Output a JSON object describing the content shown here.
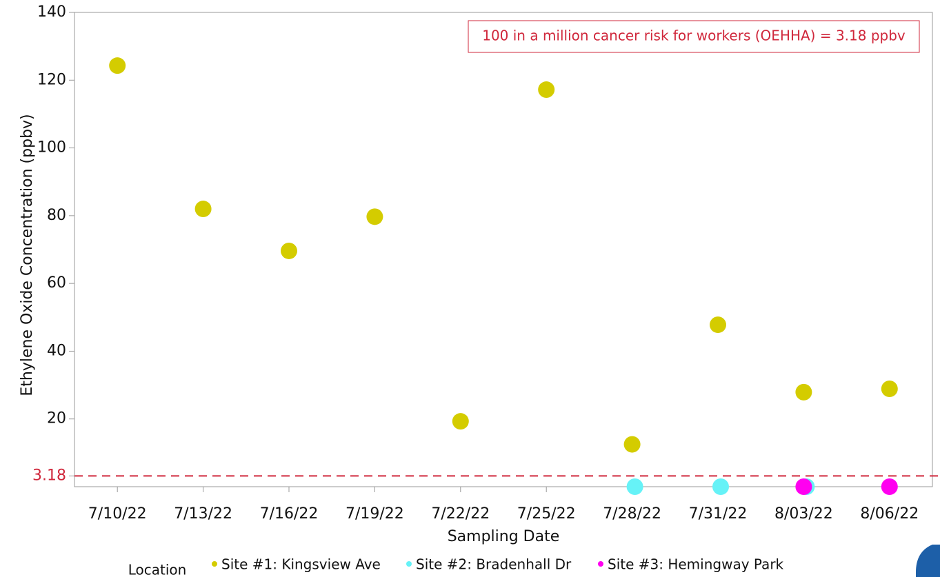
{
  "chart_data": {
    "type": "scatter",
    "y_label": "Ethylene Oxide Concentration (ppbv)",
    "x_label": "Sampling Date",
    "categories": [
      "7/10/22",
      "7/13/22",
      "7/16/22",
      "7/19/22",
      "7/22/22",
      "7/25/22",
      "7/28/22",
      "7/31/22",
      "8/03/22",
      "8/06/22"
    ],
    "series": [
      {
        "name": "Site #1: Kingsview Ave",
        "color": "#d4cc00",
        "values": [
          124.3,
          82,
          69.6,
          79.7,
          19.3,
          117.2,
          12.5,
          47.8,
          27.9,
          28.9
        ]
      },
      {
        "name": "Site #2: Bradenhall Dr",
        "color": "#66f2f7",
        "values": [
          null,
          null,
          null,
          null,
          null,
          null,
          0,
          0,
          0,
          null
        ]
      },
      {
        "name": "Site #3: Hemingway Park",
        "color": "#ff00f0",
        "values": [
          null,
          null,
          null,
          null,
          null,
          null,
          null,
          null,
          0,
          0
        ]
      }
    ],
    "ylim": [
      0,
      140
    ],
    "yticks": [
      20,
      40,
      60,
      80,
      100,
      120,
      140
    ],
    "reference_line": {
      "value": 3.18,
      "color": "#d0283c",
      "annotation": "100 in a million cancer risk for workers (OEHHA) = 3.18 ppbv"
    },
    "legend_title": "Location",
    "legend": "bottom"
  }
}
